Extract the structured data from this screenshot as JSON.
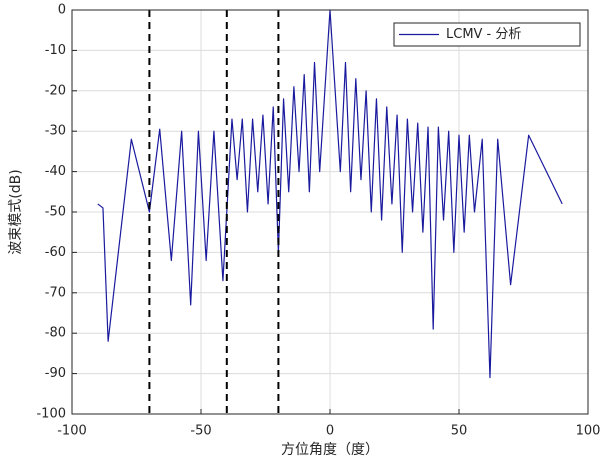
{
  "chart_data": {
    "type": "line",
    "xlabel": "方位角度（度）",
    "ylabel": "波束模式(dB)",
    "x": [
      -90,
      -88,
      -86,
      -77,
      -70,
      -66,
      -61.5,
      -57.5,
      -54,
      -51,
      -48,
      -45,
      -41.5,
      -38,
      -36,
      -34,
      -32,
      -30,
      -28,
      -26,
      -24,
      -22,
      -20,
      -18,
      -16,
      -14,
      -12,
      -10,
      -8,
      -6,
      -4,
      0,
      4,
      6,
      8,
      10,
      12,
      14,
      16,
      18,
      20,
      22,
      24,
      26,
      28,
      30,
      32,
      34,
      36,
      38,
      40,
      42,
      44,
      46,
      48,
      50,
      52,
      54,
      56,
      59,
      62,
      65,
      70,
      77,
      90
    ],
    "series": [
      {
        "name": "LCMV - 分析",
        "color": "#1a1a9e",
        "values": [
          -48,
          -49,
          -82,
          -32,
          -50,
          -29.5,
          -62,
          -30,
          -73,
          -30,
          -62,
          -30,
          -67,
          -27,
          -42,
          -27,
          -50,
          -27,
          -45,
          -26,
          -48,
          -24,
          -60,
          -22,
          -45,
          -19,
          -40,
          -16,
          -45,
          -13,
          -40,
          0,
          -40,
          -13,
          -45,
          -17,
          -42,
          -20,
          -50,
          -22,
          -52,
          -24,
          -48,
          -26,
          -60,
          -27,
          -50,
          -28,
          -55,
          -29,
          -79,
          -29,
          -52,
          -30,
          -60,
          -31,
          -55,
          -31,
          -50,
          -32,
          -91,
          -32,
          -68,
          -31,
          -48
        ]
      }
    ],
    "vlines": [
      -70,
      -40,
      -20
    ],
    "xlim": [
      -100,
      100
    ],
    "ylim": [
      -100,
      0
    ],
    "xticks": [
      -100,
      -50,
      0,
      50,
      100
    ],
    "yticks": [
      0,
      -10,
      -20,
      -30,
      -40,
      -50,
      -60,
      -70,
      -80,
      -90,
      -100
    ],
    "grid": true,
    "legend": "upper right"
  }
}
